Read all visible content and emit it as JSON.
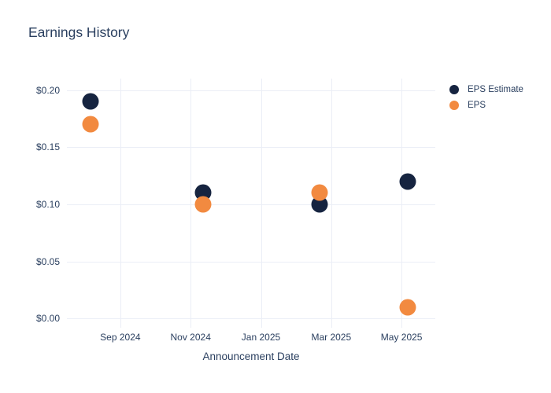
{
  "chart_data": {
    "type": "scatter",
    "title": "Earnings History",
    "xlabel": "Announcement Date",
    "ylabel": "",
    "grid": true,
    "legend_position": "right",
    "background_color": "#ffffff",
    "gridline_color": "#ebeef6",
    "text_color": "#2a3f5f",
    "marker_diameter_px": 21,
    "legend_marker_diameter_px": 12,
    "x_tick_labels": [
      "Sep 2024",
      "Nov 2024",
      "Jan 2025",
      "Mar 2025",
      "May 2025"
    ],
    "x_tick_months": [
      0,
      2,
      4,
      6,
      8
    ],
    "x_range_months": [
      -1.52,
      8.96
    ],
    "y_ticks": [
      {
        "value": 0.0,
        "label": "$0.00"
      },
      {
        "value": 0.05,
        "label": "$0.05"
      },
      {
        "value": 0.1,
        "label": "$0.10"
      },
      {
        "value": 0.15,
        "label": "$0.15"
      },
      {
        "value": 0.2,
        "label": "$0.20"
      }
    ],
    "y_range": [
      -0.008,
      0.21
    ],
    "series": [
      {
        "name": "EPS Estimate",
        "color": "#162440",
        "points": [
          {
            "approx_date": "2024-08-05",
            "month": -0.85,
            "value": 0.19
          },
          {
            "approx_date": "2024-11-11",
            "month": 2.36,
            "value": 0.11
          },
          {
            "approx_date": "2025-02-20",
            "month": 5.66,
            "value": 0.1
          },
          {
            "approx_date": "2025-05-06",
            "month": 8.18,
            "value": 0.12
          }
        ]
      },
      {
        "name": "EPS",
        "color": "#f28a40",
        "points": [
          {
            "approx_date": "2024-08-05",
            "month": -0.85,
            "value": 0.17
          },
          {
            "approx_date": "2024-11-11",
            "month": 2.36,
            "value": 0.1
          },
          {
            "approx_date": "2025-02-20",
            "month": 5.66,
            "value": 0.11
          },
          {
            "approx_date": "2025-05-06",
            "month": 8.18,
            "value": 0.01
          }
        ]
      }
    ]
  }
}
